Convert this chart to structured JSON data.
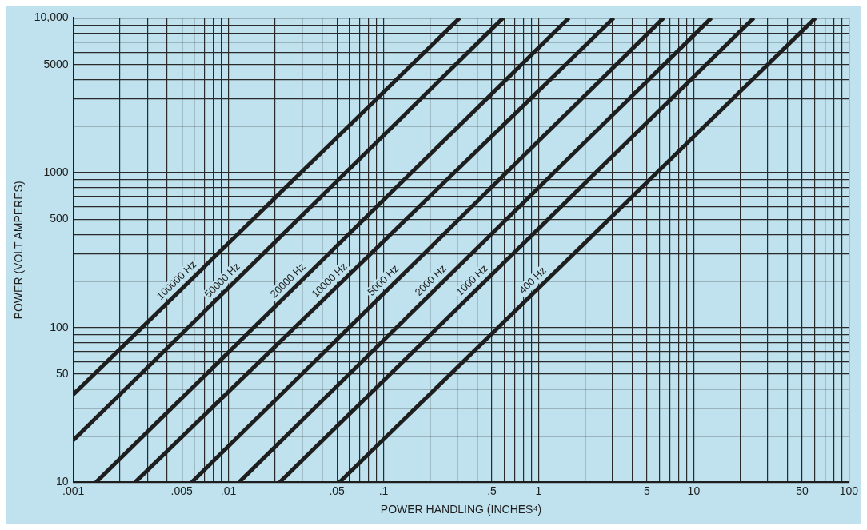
{
  "chart_data": {
    "type": "line",
    "xlabel": "POWER HANDLING (INCHES⁴)",
    "ylabel": "POWER (VOLT AMPERES)",
    "log": "xy",
    "xlim": [
      0.001,
      100
    ],
    "ylim": [
      10,
      10000
    ],
    "xticks": [
      {
        "value": 0.001,
        "label": ".001"
      },
      {
        "value": 0.002,
        "label": null
      },
      {
        "value": 0.003,
        "label": null
      },
      {
        "value": 0.004,
        "label": null
      },
      {
        "value": 0.005,
        "label": ".005"
      },
      {
        "value": 0.006,
        "label": null
      },
      {
        "value": 0.007,
        "label": null
      },
      {
        "value": 0.008,
        "label": null
      },
      {
        "value": 0.009,
        "label": null
      },
      {
        "value": 0.01,
        "label": ".01"
      },
      {
        "value": 0.02,
        "label": null
      },
      {
        "value": 0.03,
        "label": null
      },
      {
        "value": 0.04,
        "label": null
      },
      {
        "value": 0.05,
        "label": ".05"
      },
      {
        "value": 0.06,
        "label": null
      },
      {
        "value": 0.07,
        "label": null
      },
      {
        "value": 0.08,
        "label": null
      },
      {
        "value": 0.09,
        "label": null
      },
      {
        "value": 0.1,
        "label": ".1"
      },
      {
        "value": 0.2,
        "label": null
      },
      {
        "value": 0.3,
        "label": null
      },
      {
        "value": 0.4,
        "label": null
      },
      {
        "value": 0.5,
        "label": ".5"
      },
      {
        "value": 0.6,
        "label": null
      },
      {
        "value": 0.7,
        "label": null
      },
      {
        "value": 0.8,
        "label": null
      },
      {
        "value": 0.9,
        "label": null
      },
      1,
      {
        "value": 2,
        "label": null
      },
      {
        "value": 3,
        "label": null
      },
      {
        "value": 4,
        "label": null
      },
      5,
      {
        "value": 6,
        "label": null
      },
      {
        "value": 7,
        "label": null
      },
      {
        "value": 8,
        "label": null
      },
      {
        "value": 9,
        "label": null
      },
      10,
      {
        "value": 20,
        "label": null
      },
      {
        "value": 30,
        "label": null
      },
      {
        "value": 40,
        "label": null
      },
      50,
      {
        "value": 60,
        "label": null
      },
      {
        "value": 70,
        "label": null
      },
      {
        "value": 80,
        "label": null
      },
      {
        "value": 90,
        "label": null
      },
      100
    ],
    "yticks": [
      10,
      {
        "value": 20,
        "label": null
      },
      {
        "value": 30,
        "label": null
      },
      {
        "value": 40,
        "label": null
      },
      50,
      {
        "value": 60,
        "label": null
      },
      {
        "value": 70,
        "label": null
      },
      {
        "value": 80,
        "label": null
      },
      {
        "value": 90,
        "label": null
      },
      100,
      {
        "value": 200,
        "label": null
      },
      {
        "value": 300,
        "label": null
      },
      {
        "value": 400,
        "label": null
      },
      500,
      {
        "value": 600,
        "label": null
      },
      {
        "value": 700,
        "label": null
      },
      {
        "value": 800,
        "label": null
      },
      {
        "value": 900,
        "label": null
      },
      1000,
      {
        "value": 2000,
        "label": null
      },
      {
        "value": 3000,
        "label": null
      },
      {
        "value": 4000,
        "label": null
      },
      5000,
      {
        "value": 6000,
        "label": null
      },
      {
        "value": 7000,
        "label": null
      },
      {
        "value": 8000,
        "label": null
      },
      {
        "value": 9000,
        "label": null
      },
      {
        "value": 10000,
        "label": "10,000"
      }
    ],
    "grid": true,
    "legend": false,
    "marker": "none",
    "line_style": "solid",
    "series": [
      {
        "name": "100000 Hz",
        "color": "#1e1e1e",
        "x": [
          0.001,
          0.31
        ],
        "values": [
          37,
          10000
        ]
      },
      {
        "name": "50000 Hz",
        "color": "#1e1e1e",
        "x": [
          0.001,
          0.59
        ],
        "values": [
          18.7,
          10000
        ]
      },
      {
        "name": "20000 Hz",
        "color": "#1e1e1e",
        "x": [
          0.0014,
          1.57
        ],
        "values": [
          10,
          10000
        ]
      },
      {
        "name": "10000 Hz",
        "color": "#1e1e1e",
        "x": [
          0.0025,
          3.05
        ],
        "values": [
          10,
          10000
        ]
      },
      {
        "name": "5000 Hz",
        "color": "#1e1e1e",
        "x": [
          0.0058,
          6.4
        ],
        "values": [
          10,
          10000
        ]
      },
      {
        "name": "2000 Hz",
        "color": "#1e1e1e",
        "x": [
          0.0117,
          13
        ],
        "values": [
          10,
          10000
        ]
      },
      {
        "name": "1000 Hz",
        "color": "#1e1e1e",
        "x": [
          0.0214,
          24.4
        ],
        "values": [
          10,
          10000
        ]
      },
      {
        "name": "400 Hz",
        "color": "#1e1e1e",
        "x": [
          0.052,
          61
        ],
        "values": [
          10,
          10000
        ]
      }
    ]
  }
}
